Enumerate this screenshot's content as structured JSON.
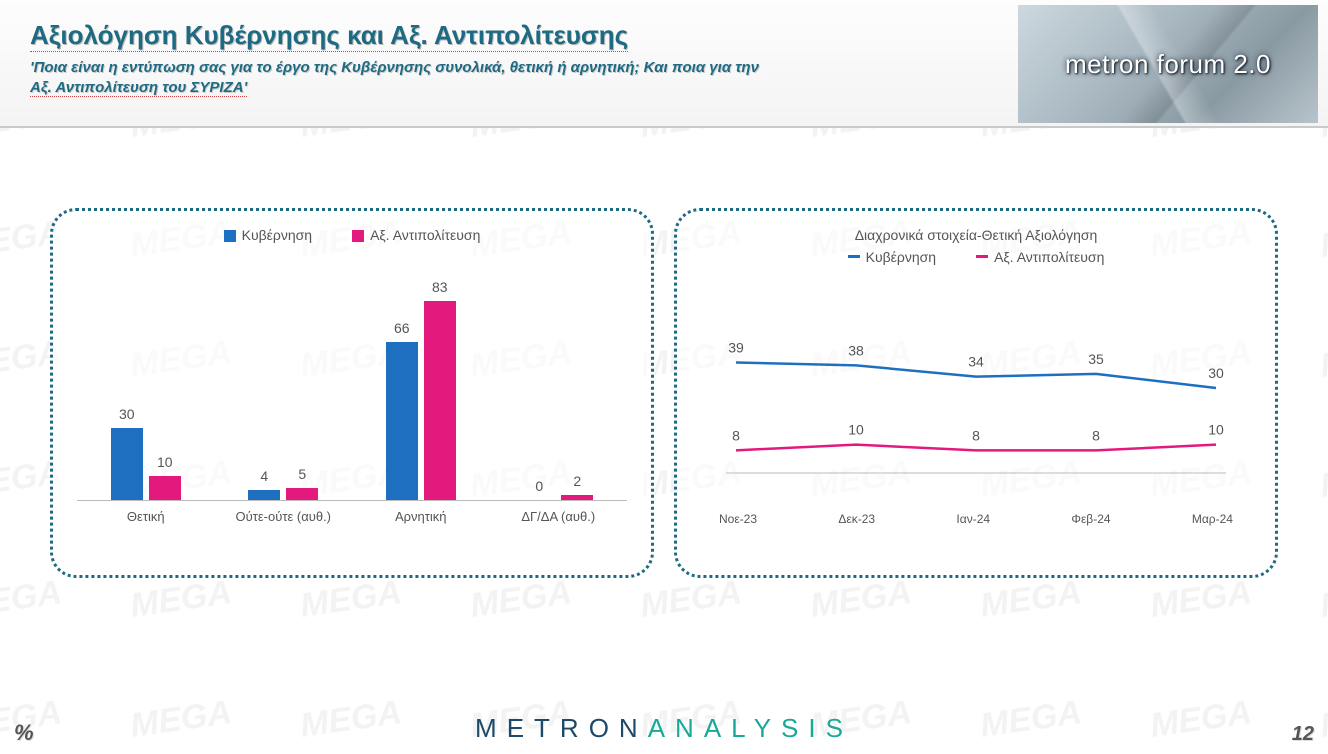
{
  "header": {
    "title": "Αξιολόγηση Κυβέρνησης και Αξ. Αντιπολίτευσης",
    "subtitle_a": "'Ποια είναι η εντύπωση σας για το έργο της Κυβέρνησης συνολικά, θετική ή αρνητική; Και ποια για την",
    "subtitle_b": "Αξ. Αντιπολίτευση του ΣΥΡΙΖΑ'",
    "logo_text": "metron forum 2.0"
  },
  "series_colors": {
    "gov": "#1f6fc0",
    "opp": "#e4197d"
  },
  "bar_chart": {
    "ymax": 100,
    "legend": {
      "gov": "Κυβέρνηση",
      "opp": "Αξ. Αντιπολίτευση"
    },
    "categories": [
      "Θετική",
      "Ούτε-ούτε (αυθ.)",
      "Αρνητική",
      "ΔΓ/ΔΑ (αυθ.)"
    ],
    "gov": [
      30,
      4,
      66,
      0
    ],
    "opp": [
      10,
      5,
      83,
      2
    ]
  },
  "line_chart": {
    "title": "Διαχρονικά στοιχεία-Θετική Αξιολόγηση",
    "legend": {
      "gov": "Κυβέρνηση",
      "opp": "Αξ. Αντιπολίτευση"
    },
    "x": [
      "Νοε-23",
      "Δεκ-23",
      "Ιαν-24",
      "Φεβ-24",
      "Μαρ-24"
    ],
    "gov": [
      39,
      38,
      34,
      35,
      30
    ],
    "opp": [
      8,
      10,
      8,
      8,
      10
    ],
    "ymin": 0,
    "ymax": 60
  },
  "footer": {
    "brand_a": "METRON",
    "brand_b": "ANALYSIS",
    "pct": "%",
    "page": "12"
  }
}
